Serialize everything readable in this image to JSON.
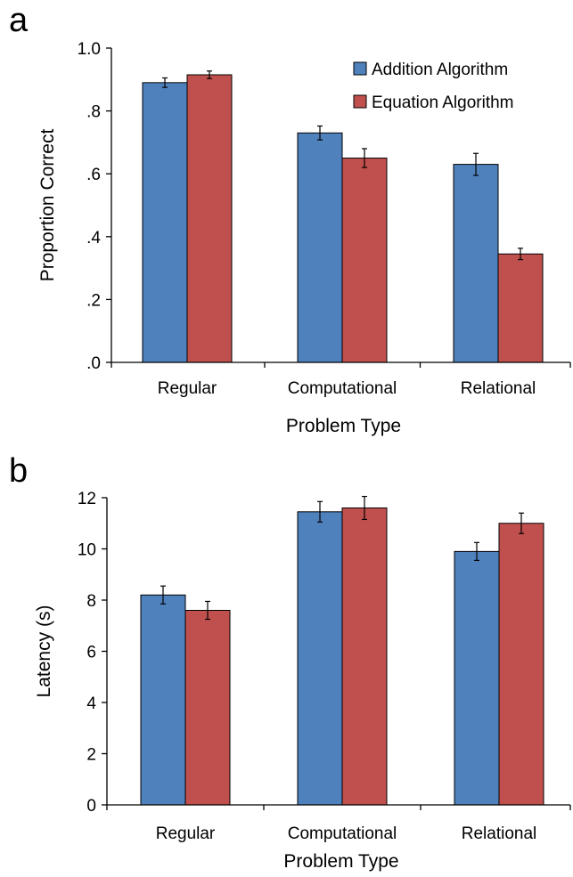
{
  "panels": [
    {
      "letter": "a",
      "chart_data": {
        "type": "bar",
        "categories": [
          "Regular",
          "Computational",
          "Relational"
        ],
        "series": [
          {
            "name": "Addition Algorithm",
            "color": "#4f81bd",
            "values": [
              0.89,
              0.73,
              0.63
            ],
            "errors": [
              0.015,
              0.022,
              0.035
            ]
          },
          {
            "name": "Equation Algorithm",
            "color": "#c0504d",
            "values": [
              0.915,
              0.65,
              0.345
            ],
            "errors": [
              0.012,
              0.03,
              0.018
            ]
          }
        ],
        "xlabel": "Problem Type",
        "ylabel": "Proportion Correct",
        "ylim": [
          0,
          1.0
        ],
        "yticks": [
          0,
          0.2,
          0.4,
          0.6,
          0.8,
          1.0
        ],
        "ytick_labels": [
          ".0",
          ".2",
          ".4",
          ".6",
          ".8",
          "1.0"
        ],
        "legend_position": "top-right",
        "grid": false
      }
    },
    {
      "letter": "b",
      "chart_data": {
        "type": "bar",
        "categories": [
          "Regular",
          "Computational",
          "Relational"
        ],
        "series": [
          {
            "name": "Addition Algorithm",
            "color": "#4f81bd",
            "values": [
              8.2,
              11.45,
              9.9
            ],
            "errors": [
              0.35,
              0.4,
              0.35
            ]
          },
          {
            "name": "Equation Algorithm",
            "color": "#c0504d",
            "values": [
              7.6,
              11.6,
              11.0
            ],
            "errors": [
              0.35,
              0.45,
              0.4
            ]
          }
        ],
        "xlabel": "Problem Type",
        "ylabel": "Latency (s)",
        "ylim": [
          0,
          12
        ],
        "yticks": [
          0,
          2,
          4,
          6,
          8,
          10,
          12
        ],
        "ytick_labels": [
          "0",
          "2",
          "4",
          "6",
          "8",
          "10",
          "12"
        ],
        "legend_position": "none",
        "grid": false
      }
    }
  ]
}
